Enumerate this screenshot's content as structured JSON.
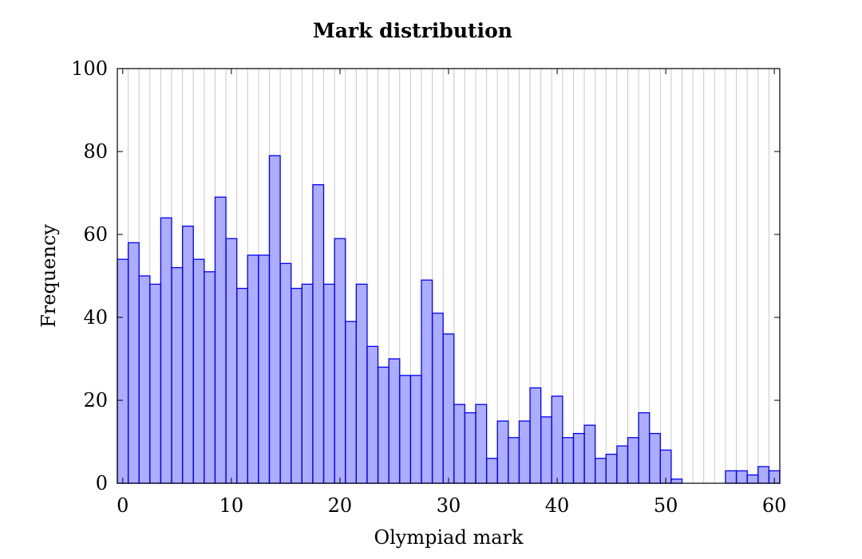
{
  "chart_data": {
    "type": "bar",
    "title": "Mark distribution",
    "xlabel": "Olympiad mark",
    "ylabel": "Frequency",
    "xlim": [
      0,
      60
    ],
    "ylim": [
      0,
      100
    ],
    "x_ticks": [
      0,
      10,
      20,
      30,
      40,
      50,
      60
    ],
    "y_ticks": [
      0,
      20,
      40,
      60,
      80,
      100
    ],
    "grid": "vertical lines at each integer mark",
    "categories": [
      0,
      1,
      2,
      3,
      4,
      5,
      6,
      7,
      8,
      9,
      10,
      11,
      12,
      13,
      14,
      15,
      16,
      17,
      18,
      19,
      20,
      21,
      22,
      23,
      24,
      25,
      26,
      27,
      28,
      29,
      30,
      31,
      32,
      33,
      34,
      35,
      36,
      37,
      38,
      39,
      40,
      41,
      42,
      43,
      44,
      45,
      46,
      47,
      48,
      49,
      50,
      51,
      52,
      53,
      54,
      55,
      56,
      57,
      58,
      59,
      60
    ],
    "values": [
      54,
      58,
      50,
      48,
      64,
      52,
      62,
      54,
      51,
      69,
      59,
      47,
      55,
      55,
      79,
      53,
      47,
      48,
      72,
      48,
      59,
      39,
      48,
      33,
      28,
      30,
      26,
      26,
      49,
      41,
      36,
      19,
      17,
      19,
      6,
      15,
      11,
      15,
      23,
      16,
      21,
      11,
      12,
      14,
      6,
      7,
      9,
      11,
      17,
      12,
      8,
      1,
      0,
      0,
      0,
      0,
      3,
      3,
      2,
      4,
      3
    ],
    "colors": {
      "bar_fill": "#aaaaff",
      "bar_edge": "#0000ff",
      "grid": "#c8c8c8"
    }
  }
}
